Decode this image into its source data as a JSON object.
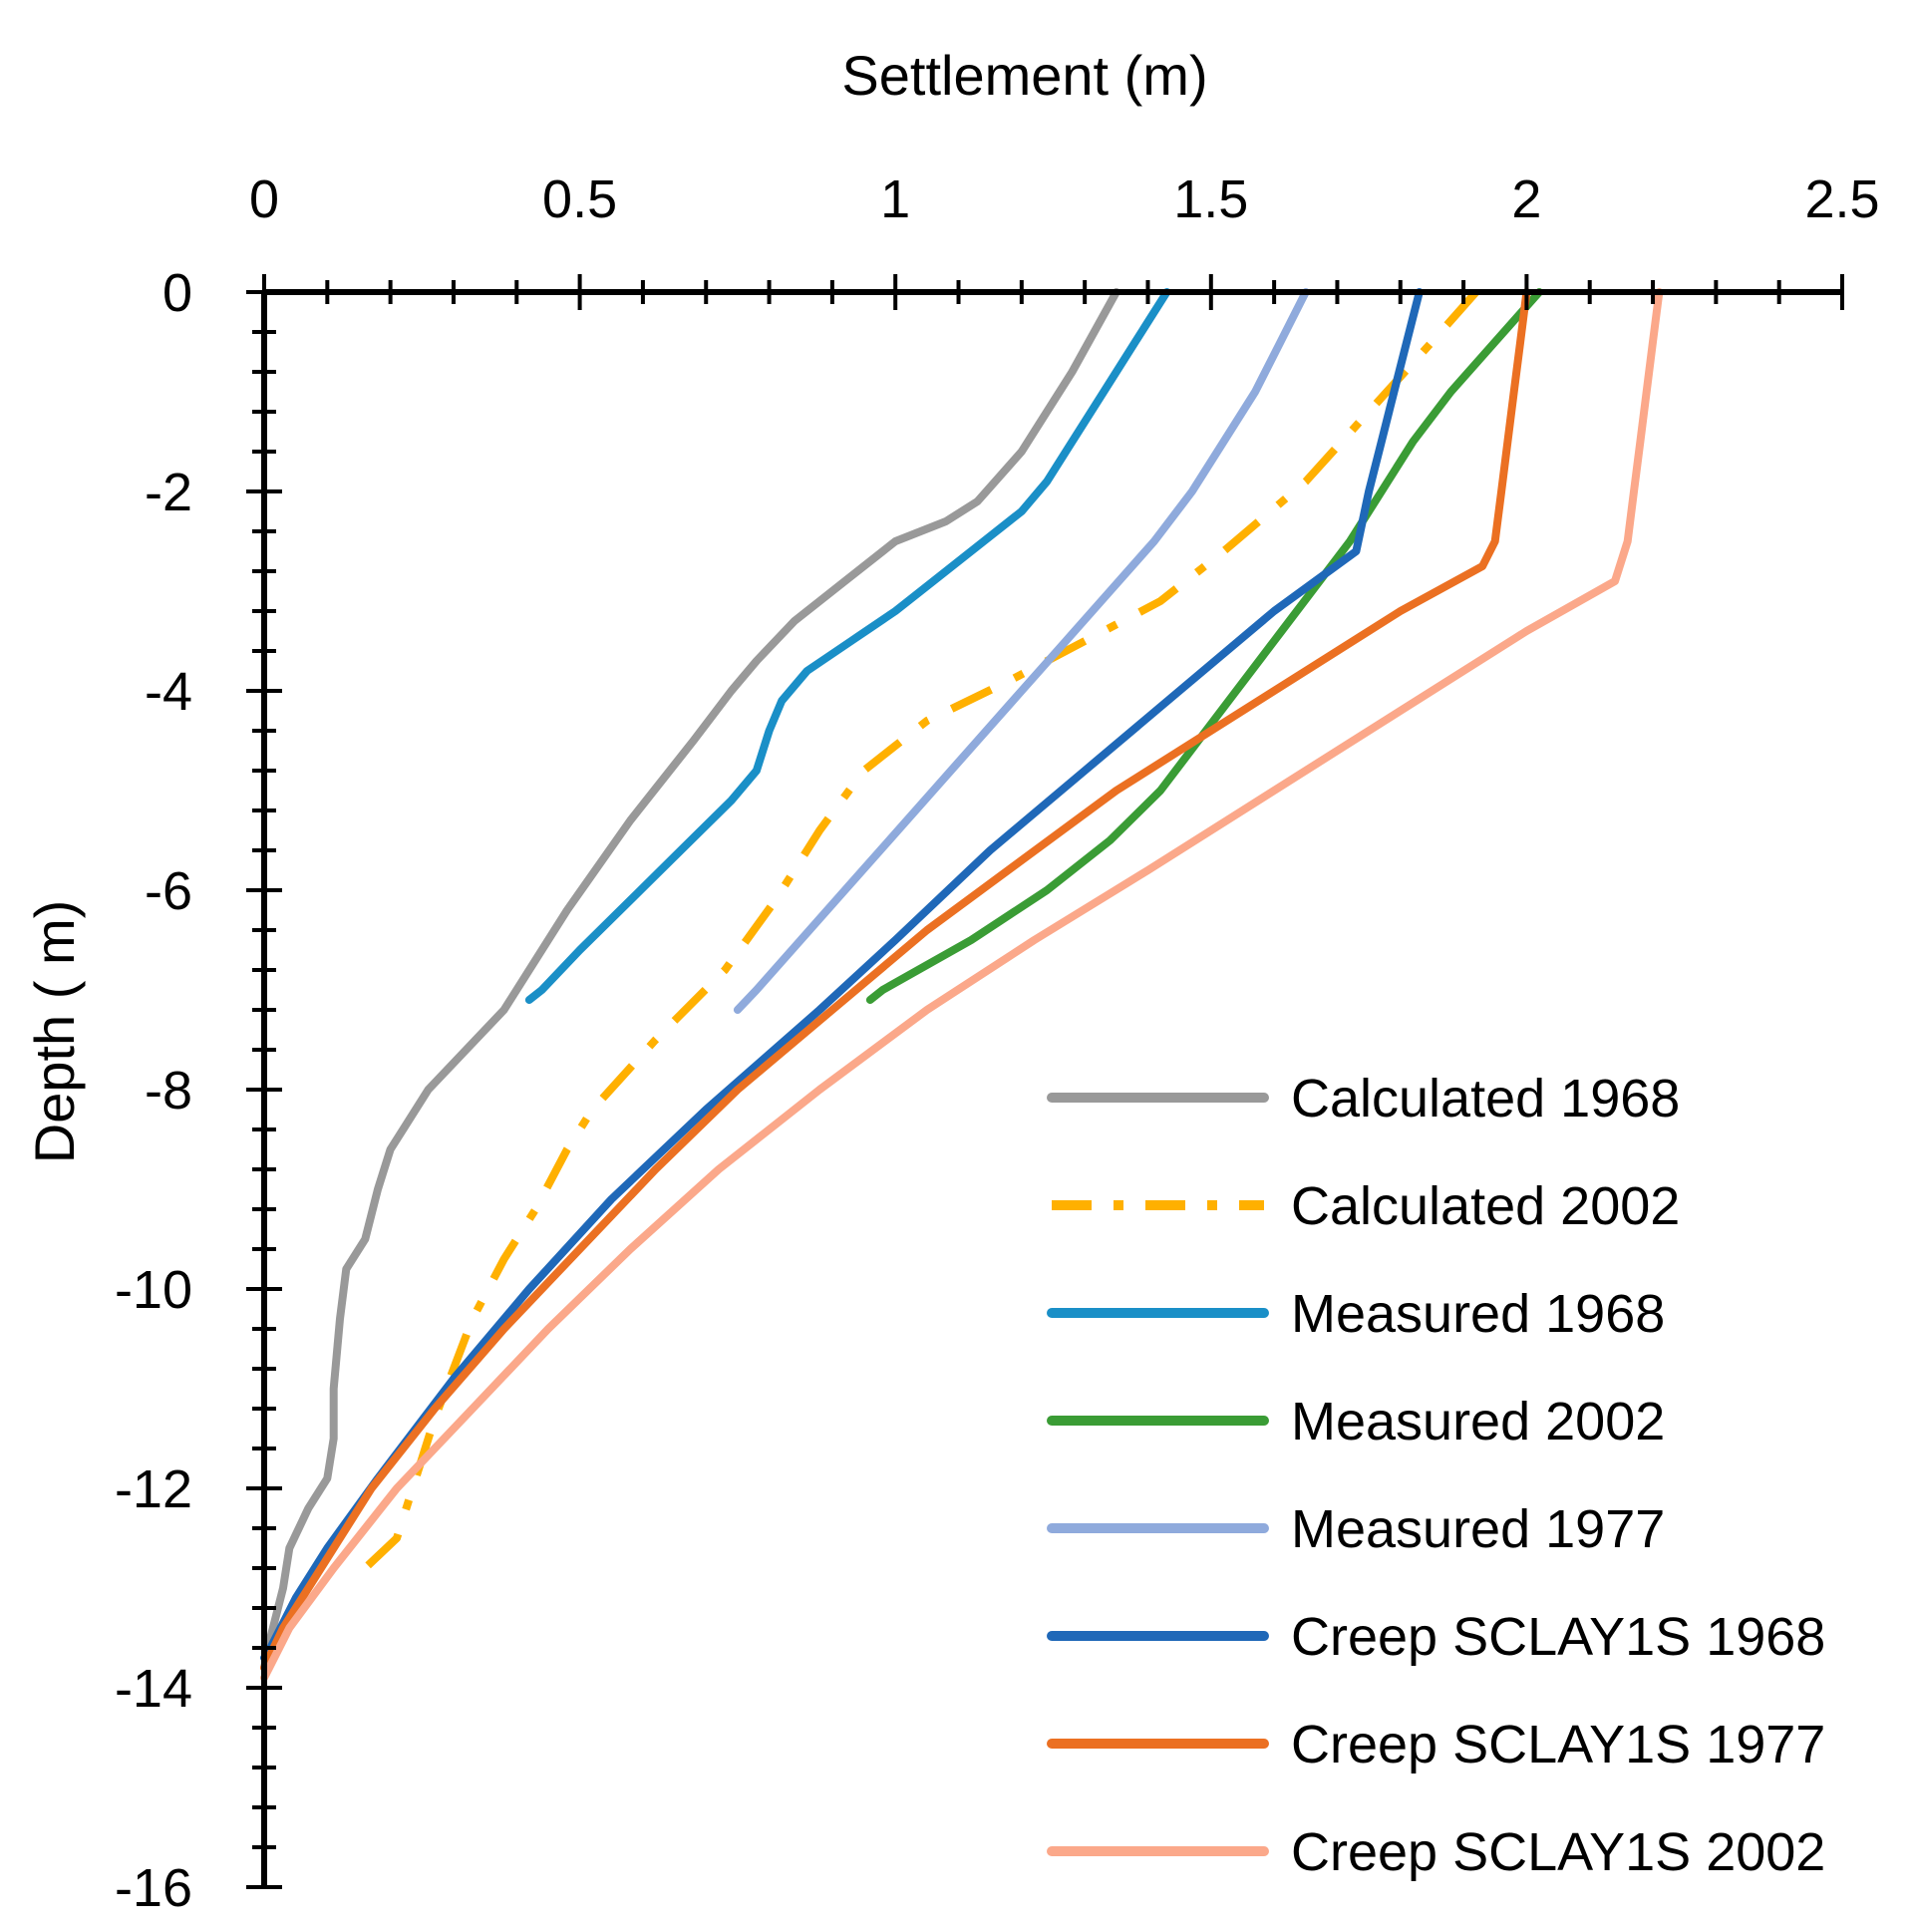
{
  "chart_data": {
    "type": "line",
    "title": "",
    "xlabel": "Settlement (m)",
    "ylabel": "Depth ( m)",
    "xlim": [
      0,
      2.5
    ],
    "ylim": [
      -16,
      0
    ],
    "x_ticks": [
      "0",
      "0.5",
      "1",
      "1.5",
      "2",
      "2.5"
    ],
    "y_ticks": [
      "0",
      "-2",
      "-4",
      "-6",
      "-8",
      "-10",
      "-12",
      "-14",
      "-16"
    ],
    "x_axis_position": "top",
    "legend_position": "bottom-right",
    "grid": false,
    "series": [
      {
        "name": "Calculated 1968",
        "color": "#999999",
        "dash": "solid",
        "points": [
          [
            1.35,
            0
          ],
          [
            1.28,
            -0.8
          ],
          [
            1.2,
            -1.6
          ],
          [
            1.13,
            -2.1
          ],
          [
            1.08,
            -2.3
          ],
          [
            1.0,
            -2.5
          ],
          [
            0.92,
            -2.9
          ],
          [
            0.84,
            -3.3
          ],
          [
            0.78,
            -3.7
          ],
          [
            0.74,
            -4.0
          ],
          [
            0.68,
            -4.5
          ],
          [
            0.58,
            -5.3
          ],
          [
            0.48,
            -6.2
          ],
          [
            0.42,
            -6.8
          ],
          [
            0.38,
            -7.2
          ],
          [
            0.32,
            -7.6
          ],
          [
            0.26,
            -8.0
          ],
          [
            0.22,
            -8.4
          ],
          [
            0.2,
            -8.6
          ],
          [
            0.18,
            -9.0
          ],
          [
            0.16,
            -9.5
          ],
          [
            0.13,
            -9.8
          ],
          [
            0.12,
            -10.3
          ],
          [
            0.11,
            -11.0
          ],
          [
            0.11,
            -11.5
          ],
          [
            0.1,
            -11.9
          ],
          [
            0.07,
            -12.2
          ],
          [
            0.04,
            -12.6
          ],
          [
            0.03,
            -13.0
          ],
          [
            0.01,
            -13.5
          ],
          [
            0.0,
            -13.8
          ]
        ]
      },
      {
        "name": "Calculated 2002",
        "color": "#FFB000",
        "dash": "dashdot",
        "points": [
          [
            1.92,
            0
          ],
          [
            1.85,
            -0.5
          ],
          [
            1.75,
            -1.2
          ],
          [
            1.65,
            -1.9
          ],
          [
            1.52,
            -2.6
          ],
          [
            1.42,
            -3.1
          ],
          [
            1.3,
            -3.5
          ],
          [
            1.18,
            -3.9
          ],
          [
            1.05,
            -4.3
          ],
          [
            0.95,
            -4.8
          ],
          [
            0.88,
            -5.4
          ],
          [
            0.81,
            -6.1
          ],
          [
            0.73,
            -6.8
          ],
          [
            0.62,
            -7.5
          ],
          [
            0.52,
            -8.2
          ],
          [
            0.48,
            -8.6
          ],
          [
            0.43,
            -9.2
          ],
          [
            0.38,
            -9.7
          ],
          [
            0.33,
            -10.3
          ],
          [
            0.3,
            -10.8
          ],
          [
            0.27,
            -11.3
          ],
          [
            0.24,
            -11.9
          ],
          [
            0.21,
            -12.5
          ],
          [
            0.16,
            -12.8
          ],
          [
            0.14,
            -12.95
          ]
        ]
      },
      {
        "name": "Measured 1968",
        "color": "#1A8FC7",
        "dash": "solid",
        "points": [
          [
            1.43,
            0
          ],
          [
            1.38,
            -0.5
          ],
          [
            1.33,
            -1.0
          ],
          [
            1.28,
            -1.5
          ],
          [
            1.24,
            -1.9
          ],
          [
            1.2,
            -2.2
          ],
          [
            1.14,
            -2.5
          ],
          [
            1.06,
            -2.9
          ],
          [
            1.0,
            -3.2
          ],
          [
            0.93,
            -3.5
          ],
          [
            0.86,
            -3.8
          ],
          [
            0.82,
            -4.1
          ],
          [
            0.8,
            -4.4
          ],
          [
            0.78,
            -4.8
          ],
          [
            0.74,
            -5.1
          ],
          [
            0.66,
            -5.6
          ],
          [
            0.58,
            -6.1
          ],
          [
            0.5,
            -6.6
          ],
          [
            0.44,
            -7.0
          ],
          [
            0.42,
            -7.1
          ]
        ]
      },
      {
        "name": "Measured 2002",
        "color": "#3A9C35",
        "dash": "solid",
        "points": [
          [
            2.02,
            0
          ],
          [
            1.95,
            -0.5
          ],
          [
            1.88,
            -1.0
          ],
          [
            1.82,
            -1.5
          ],
          [
            1.77,
            -2.0
          ],
          [
            1.72,
            -2.5
          ],
          [
            1.66,
            -3.0
          ],
          [
            1.6,
            -3.5
          ],
          [
            1.54,
            -4.0
          ],
          [
            1.48,
            -4.5
          ],
          [
            1.42,
            -5.0
          ],
          [
            1.34,
            -5.5
          ],
          [
            1.24,
            -6.0
          ],
          [
            1.12,
            -6.5
          ],
          [
            0.98,
            -7.0
          ],
          [
            0.96,
            -7.1
          ]
        ]
      },
      {
        "name": "Measured 1977",
        "color": "#8FAADC",
        "dash": "solid",
        "points": [
          [
            1.65,
            0
          ],
          [
            1.61,
            -0.5
          ],
          [
            1.57,
            -1.0
          ],
          [
            1.52,
            -1.5
          ],
          [
            1.47,
            -2.0
          ],
          [
            1.41,
            -2.5
          ],
          [
            1.34,
            -3.0
          ],
          [
            1.27,
            -3.5
          ],
          [
            1.2,
            -4.0
          ],
          [
            1.13,
            -4.5
          ],
          [
            1.06,
            -5.0
          ],
          [
            0.99,
            -5.5
          ],
          [
            0.92,
            -6.0
          ],
          [
            0.85,
            -6.5
          ],
          [
            0.78,
            -7.0
          ],
          [
            0.75,
            -7.2
          ]
        ]
      },
      {
        "name": "Creep SCLAY1S 1968",
        "color": "#1F68B8",
        "dash": "solid",
        "points": [
          [
            1.83,
            0
          ],
          [
            1.81,
            -0.5
          ],
          [
            1.79,
            -1.0
          ],
          [
            1.77,
            -1.5
          ],
          [
            1.75,
            -2.0
          ],
          [
            1.73,
            -2.6
          ],
          [
            1.6,
            -3.2
          ],
          [
            1.45,
            -4.0
          ],
          [
            1.3,
            -4.8
          ],
          [
            1.15,
            -5.6
          ],
          [
            1.0,
            -6.5
          ],
          [
            0.88,
            -7.2
          ],
          [
            0.7,
            -8.2
          ],
          [
            0.55,
            -9.1
          ],
          [
            0.42,
            -10.0
          ],
          [
            0.3,
            -10.9
          ],
          [
            0.18,
            -11.9
          ],
          [
            0.1,
            -12.6
          ],
          [
            0.05,
            -13.1
          ],
          [
            0.01,
            -13.6
          ],
          [
            0.0,
            -13.7
          ]
        ]
      },
      {
        "name": "Creep SCLAY1S 1977",
        "color": "#EB7022",
        "dash": "solid",
        "points": [
          [
            2.0,
            0
          ],
          [
            1.99,
            -0.5
          ],
          [
            1.98,
            -1.0
          ],
          [
            1.97,
            -1.5
          ],
          [
            1.96,
            -2.0
          ],
          [
            1.95,
            -2.5
          ],
          [
            1.93,
            -2.75
          ],
          [
            1.8,
            -3.2
          ],
          [
            1.65,
            -3.8
          ],
          [
            1.5,
            -4.4
          ],
          [
            1.35,
            -5.0
          ],
          [
            1.2,
            -5.7
          ],
          [
            1.05,
            -6.4
          ],
          [
            0.9,
            -7.2
          ],
          [
            0.75,
            -8.0
          ],
          [
            0.62,
            -8.8
          ],
          [
            0.5,
            -9.6
          ],
          [
            0.38,
            -10.4
          ],
          [
            0.27,
            -11.2
          ],
          [
            0.17,
            -12.0
          ],
          [
            0.09,
            -12.8
          ],
          [
            0.03,
            -13.4
          ],
          [
            0.0,
            -13.8
          ]
        ]
      },
      {
        "name": "Creep SCLAY1S 2002",
        "color": "#FBA88A",
        "dash": "solid",
        "points": [
          [
            2.21,
            0
          ],
          [
            2.2,
            -0.5
          ],
          [
            2.19,
            -1.0
          ],
          [
            2.18,
            -1.5
          ],
          [
            2.17,
            -2.0
          ],
          [
            2.16,
            -2.5
          ],
          [
            2.14,
            -2.9
          ],
          [
            2.0,
            -3.4
          ],
          [
            1.85,
            -4.0
          ],
          [
            1.7,
            -4.6
          ],
          [
            1.55,
            -5.2
          ],
          [
            1.4,
            -5.8
          ],
          [
            1.22,
            -6.5
          ],
          [
            1.05,
            -7.2
          ],
          [
            0.88,
            -8.0
          ],
          [
            0.72,
            -8.8
          ],
          [
            0.58,
            -9.6
          ],
          [
            0.45,
            -10.4
          ],
          [
            0.33,
            -11.2
          ],
          [
            0.21,
            -12.0
          ],
          [
            0.11,
            -12.8
          ],
          [
            0.04,
            -13.4
          ],
          [
            0.0,
            -13.9
          ]
        ]
      }
    ]
  }
}
